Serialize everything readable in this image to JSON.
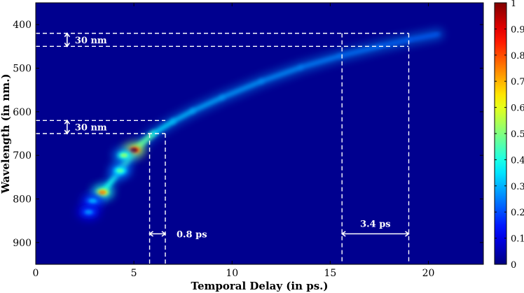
{
  "chart_data": {
    "type": "heatmap",
    "title": "",
    "xlabel": "Temporal Delay (in ps.)",
    "ylabel": "Wavelength (in nm.)",
    "xlim": [
      0,
      22.8
    ],
    "ylim": [
      950,
      350
    ],
    "y_reversed": true,
    "xticks": [
      0,
      5,
      10,
      15,
      20
    ],
    "yticks": [
      400,
      500,
      600,
      700,
      800,
      900
    ],
    "colormap": "jet",
    "background_color": "#00008f",
    "colorbar": {
      "ticks": [
        0,
        0.1,
        0.2,
        0.3,
        0.4,
        0.5,
        0.6,
        0.7,
        0.8,
        0.9,
        1
      ],
      "range": [
        0,
        1
      ],
      "placement": "right"
    },
    "grid": false,
    "ridge": {
      "points": [
        {
          "x": 3.4,
          "y": 785,
          "z": 0.7
        },
        {
          "x": 4.3,
          "y": 735,
          "z": 0.4
        },
        {
          "x": 5.0,
          "y": 688,
          "z": 1.0
        },
        {
          "x": 6.0,
          "y": 650,
          "z": 0.45
        },
        {
          "x": 7.0,
          "y": 622,
          "z": 0.35
        },
        {
          "x": 8.0,
          "y": 598,
          "z": 0.3
        },
        {
          "x": 9.5,
          "y": 567,
          "z": 0.25
        },
        {
          "x": 11.5,
          "y": 530,
          "z": 0.22
        },
        {
          "x": 13.5,
          "y": 498,
          "z": 0.18
        },
        {
          "x": 15.5,
          "y": 472,
          "z": 0.14
        },
        {
          "x": 17.5,
          "y": 450,
          "z": 0.1
        },
        {
          "x": 19.0,
          "y": 435,
          "z": 0.07
        },
        {
          "x": 20.5,
          "y": 422,
          "z": 0.04
        }
      ]
    },
    "hotspots": [
      {
        "x": 5.0,
        "y": 688,
        "z": 1.0
      },
      {
        "x": 3.4,
        "y": 785,
        "z": 0.72
      },
      {
        "x": 4.3,
        "y": 735,
        "z": 0.45
      },
      {
        "x": 2.9,
        "y": 805,
        "z": 0.3
      },
      {
        "x": 2.7,
        "y": 830,
        "z": 0.25
      },
      {
        "x": 4.5,
        "y": 700,
        "z": 0.5
      }
    ],
    "annotations": [
      {
        "text": "30 nm",
        "type": "wavelength-band",
        "x": 1.6,
        "y1": 420,
        "y2": 450,
        "line_to_x": 19.0
      },
      {
        "text": "30 nm",
        "type": "wavelength-band",
        "x": 1.6,
        "y1": 620,
        "y2": 650,
        "line_to_x": 6.6
      },
      {
        "text": "0.8 ps",
        "type": "delay-span",
        "x1": 5.8,
        "x2": 6.6,
        "y": 880,
        "from_y": 650
      },
      {
        "text": "3.4 ps",
        "type": "delay-span",
        "x1": 15.6,
        "x2": 19.0,
        "y": 880,
        "from_y": 420
      }
    ]
  }
}
